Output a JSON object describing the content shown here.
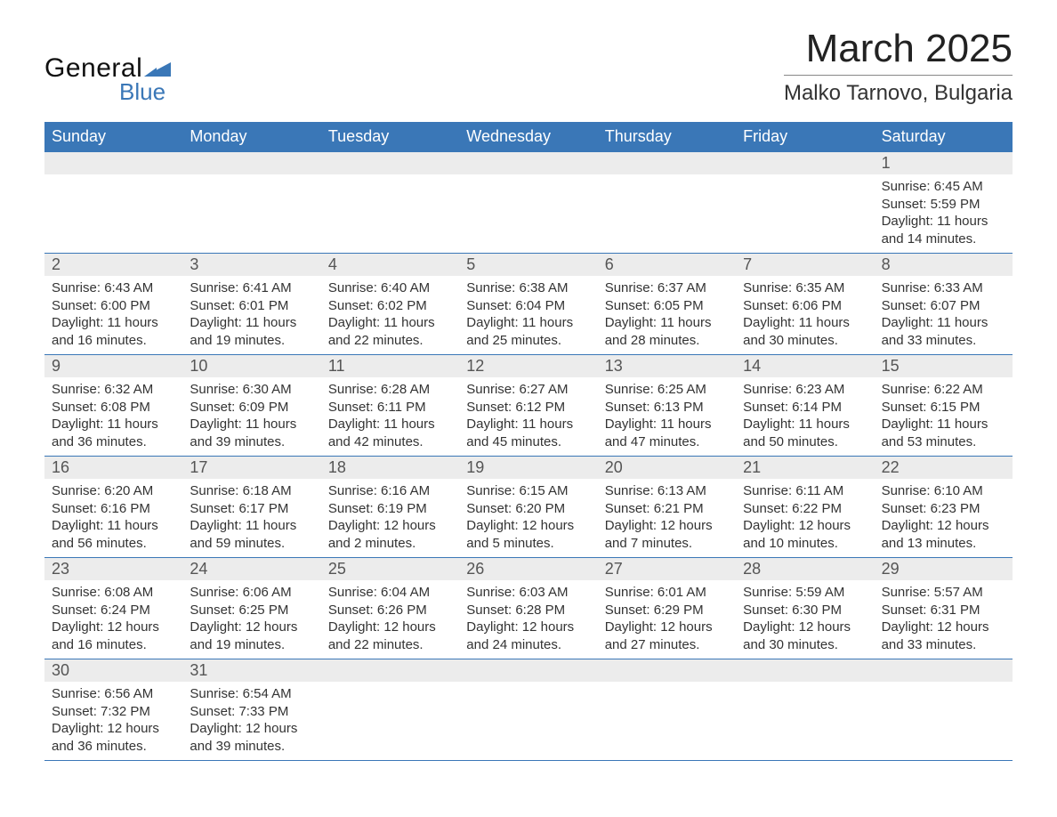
{
  "logo": {
    "text_general": "General",
    "text_blue": "Blue",
    "shape_color": "#3a77b7"
  },
  "header": {
    "month_year": "March 2025",
    "location": "Malko Tarnovo, Bulgaria"
  },
  "calendar": {
    "weekday_header_bg": "#3a77b7",
    "weekday_header_fg": "#ffffff",
    "daynum_band_bg": "#ececec",
    "row_border_color": "#3a77b7",
    "weekdays": [
      "Sunday",
      "Monday",
      "Tuesday",
      "Wednesday",
      "Thursday",
      "Friday",
      "Saturday"
    ],
    "weeks": [
      [
        null,
        null,
        null,
        null,
        null,
        null,
        {
          "n": "1",
          "sr": "Sunrise: 6:45 AM",
          "ss": "Sunset: 5:59 PM",
          "d1": "Daylight: 11 hours",
          "d2": "and 14 minutes."
        }
      ],
      [
        {
          "n": "2",
          "sr": "Sunrise: 6:43 AM",
          "ss": "Sunset: 6:00 PM",
          "d1": "Daylight: 11 hours",
          "d2": "and 16 minutes."
        },
        {
          "n": "3",
          "sr": "Sunrise: 6:41 AM",
          "ss": "Sunset: 6:01 PM",
          "d1": "Daylight: 11 hours",
          "d2": "and 19 minutes."
        },
        {
          "n": "4",
          "sr": "Sunrise: 6:40 AM",
          "ss": "Sunset: 6:02 PM",
          "d1": "Daylight: 11 hours",
          "d2": "and 22 minutes."
        },
        {
          "n": "5",
          "sr": "Sunrise: 6:38 AM",
          "ss": "Sunset: 6:04 PM",
          "d1": "Daylight: 11 hours",
          "d2": "and 25 minutes."
        },
        {
          "n": "6",
          "sr": "Sunrise: 6:37 AM",
          "ss": "Sunset: 6:05 PM",
          "d1": "Daylight: 11 hours",
          "d2": "and 28 minutes."
        },
        {
          "n": "7",
          "sr": "Sunrise: 6:35 AM",
          "ss": "Sunset: 6:06 PM",
          "d1": "Daylight: 11 hours",
          "d2": "and 30 minutes."
        },
        {
          "n": "8",
          "sr": "Sunrise: 6:33 AM",
          "ss": "Sunset: 6:07 PM",
          "d1": "Daylight: 11 hours",
          "d2": "and 33 minutes."
        }
      ],
      [
        {
          "n": "9",
          "sr": "Sunrise: 6:32 AM",
          "ss": "Sunset: 6:08 PM",
          "d1": "Daylight: 11 hours",
          "d2": "and 36 minutes."
        },
        {
          "n": "10",
          "sr": "Sunrise: 6:30 AM",
          "ss": "Sunset: 6:09 PM",
          "d1": "Daylight: 11 hours",
          "d2": "and 39 minutes."
        },
        {
          "n": "11",
          "sr": "Sunrise: 6:28 AM",
          "ss": "Sunset: 6:11 PM",
          "d1": "Daylight: 11 hours",
          "d2": "and 42 minutes."
        },
        {
          "n": "12",
          "sr": "Sunrise: 6:27 AM",
          "ss": "Sunset: 6:12 PM",
          "d1": "Daylight: 11 hours",
          "d2": "and 45 minutes."
        },
        {
          "n": "13",
          "sr": "Sunrise: 6:25 AM",
          "ss": "Sunset: 6:13 PM",
          "d1": "Daylight: 11 hours",
          "d2": "and 47 minutes."
        },
        {
          "n": "14",
          "sr": "Sunrise: 6:23 AM",
          "ss": "Sunset: 6:14 PM",
          "d1": "Daylight: 11 hours",
          "d2": "and 50 minutes."
        },
        {
          "n": "15",
          "sr": "Sunrise: 6:22 AM",
          "ss": "Sunset: 6:15 PM",
          "d1": "Daylight: 11 hours",
          "d2": "and 53 minutes."
        }
      ],
      [
        {
          "n": "16",
          "sr": "Sunrise: 6:20 AM",
          "ss": "Sunset: 6:16 PM",
          "d1": "Daylight: 11 hours",
          "d2": "and 56 minutes."
        },
        {
          "n": "17",
          "sr": "Sunrise: 6:18 AM",
          "ss": "Sunset: 6:17 PM",
          "d1": "Daylight: 11 hours",
          "d2": "and 59 minutes."
        },
        {
          "n": "18",
          "sr": "Sunrise: 6:16 AM",
          "ss": "Sunset: 6:19 PM",
          "d1": "Daylight: 12 hours",
          "d2": "and 2 minutes."
        },
        {
          "n": "19",
          "sr": "Sunrise: 6:15 AM",
          "ss": "Sunset: 6:20 PM",
          "d1": "Daylight: 12 hours",
          "d2": "and 5 minutes."
        },
        {
          "n": "20",
          "sr": "Sunrise: 6:13 AM",
          "ss": "Sunset: 6:21 PM",
          "d1": "Daylight: 12 hours",
          "d2": "and 7 minutes."
        },
        {
          "n": "21",
          "sr": "Sunrise: 6:11 AM",
          "ss": "Sunset: 6:22 PM",
          "d1": "Daylight: 12 hours",
          "d2": "and 10 minutes."
        },
        {
          "n": "22",
          "sr": "Sunrise: 6:10 AM",
          "ss": "Sunset: 6:23 PM",
          "d1": "Daylight: 12 hours",
          "d2": "and 13 minutes."
        }
      ],
      [
        {
          "n": "23",
          "sr": "Sunrise: 6:08 AM",
          "ss": "Sunset: 6:24 PM",
          "d1": "Daylight: 12 hours",
          "d2": "and 16 minutes."
        },
        {
          "n": "24",
          "sr": "Sunrise: 6:06 AM",
          "ss": "Sunset: 6:25 PM",
          "d1": "Daylight: 12 hours",
          "d2": "and 19 minutes."
        },
        {
          "n": "25",
          "sr": "Sunrise: 6:04 AM",
          "ss": "Sunset: 6:26 PM",
          "d1": "Daylight: 12 hours",
          "d2": "and 22 minutes."
        },
        {
          "n": "26",
          "sr": "Sunrise: 6:03 AM",
          "ss": "Sunset: 6:28 PM",
          "d1": "Daylight: 12 hours",
          "d2": "and 24 minutes."
        },
        {
          "n": "27",
          "sr": "Sunrise: 6:01 AM",
          "ss": "Sunset: 6:29 PM",
          "d1": "Daylight: 12 hours",
          "d2": "and 27 minutes."
        },
        {
          "n": "28",
          "sr": "Sunrise: 5:59 AM",
          "ss": "Sunset: 6:30 PM",
          "d1": "Daylight: 12 hours",
          "d2": "and 30 minutes."
        },
        {
          "n": "29",
          "sr": "Sunrise: 5:57 AM",
          "ss": "Sunset: 6:31 PM",
          "d1": "Daylight: 12 hours",
          "d2": "and 33 minutes."
        }
      ],
      [
        {
          "n": "30",
          "sr": "Sunrise: 6:56 AM",
          "ss": "Sunset: 7:32 PM",
          "d1": "Daylight: 12 hours",
          "d2": "and 36 minutes."
        },
        {
          "n": "31",
          "sr": "Sunrise: 6:54 AM",
          "ss": "Sunset: 7:33 PM",
          "d1": "Daylight: 12 hours",
          "d2": "and 39 minutes."
        },
        null,
        null,
        null,
        null,
        null
      ]
    ]
  }
}
